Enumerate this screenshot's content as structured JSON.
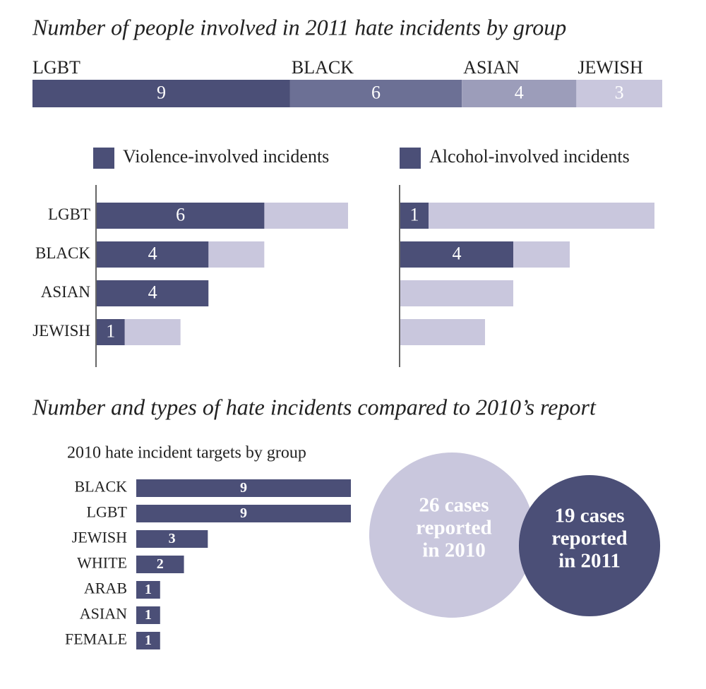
{
  "chart_data": [
    {
      "type": "stacked-bar",
      "title": "Number of people involved in 2011 hate incidents by group",
      "categories": [
        "LGBT",
        "BLACK",
        "ASIAN",
        "JEWISH"
      ],
      "values": [
        9,
        6,
        4,
        3
      ],
      "colors": [
        "#4b4f77",
        "#6c7095",
        "#9c9dba",
        "#c9c7dd"
      ],
      "xlim": [
        0,
        22
      ]
    },
    {
      "type": "overlay-bar",
      "categories": [
        "LGBT",
        "BLACK",
        "ASIAN",
        "JEWISH"
      ],
      "series": [
        {
          "name": "Violence-involved incidents",
          "color": "#4b4f77",
          "values": [
            6,
            4,
            4,
            1
          ]
        }
      ],
      "totals": [
        9,
        6,
        4,
        3
      ],
      "total_color": "#c9c7dd",
      "xlim": [
        0,
        9
      ]
    },
    {
      "type": "overlay-bar",
      "categories": [
        "LGBT",
        "BLACK",
        "ASIAN",
        "JEWISH"
      ],
      "series": [
        {
          "name": "Alcohol-involved incidents",
          "color": "#4b4f77",
          "values": [
            1,
            4,
            0,
            0
          ]
        }
      ],
      "totals": [
        9,
        6,
        4,
        3
      ],
      "total_color": "#c9c7dd",
      "xlim": [
        0,
        9
      ]
    },
    {
      "type": "bar",
      "title": "Number and types of hate incidents compared to 2010’s report",
      "subtitle": "2010 hate incident targets by group",
      "categories": [
        "BLACK",
        "LGBT",
        "JEWISH",
        "WHITE",
        "ARAB",
        "ASIAN",
        "FEMALE"
      ],
      "values": [
        9,
        9,
        3,
        2,
        1,
        1,
        1
      ],
      "color": "#4b4f77",
      "xlim": [
        0,
        9
      ]
    },
    {
      "type": "bubble",
      "items": [
        {
          "value": 26,
          "label": [
            "26 cases",
            "reported",
            "in 2010"
          ],
          "color": "#c9c7dd"
        },
        {
          "value": 19,
          "label": [
            "19 cases",
            "reported",
            "in 2011"
          ],
          "color": "#4b4f77"
        }
      ]
    }
  ]
}
